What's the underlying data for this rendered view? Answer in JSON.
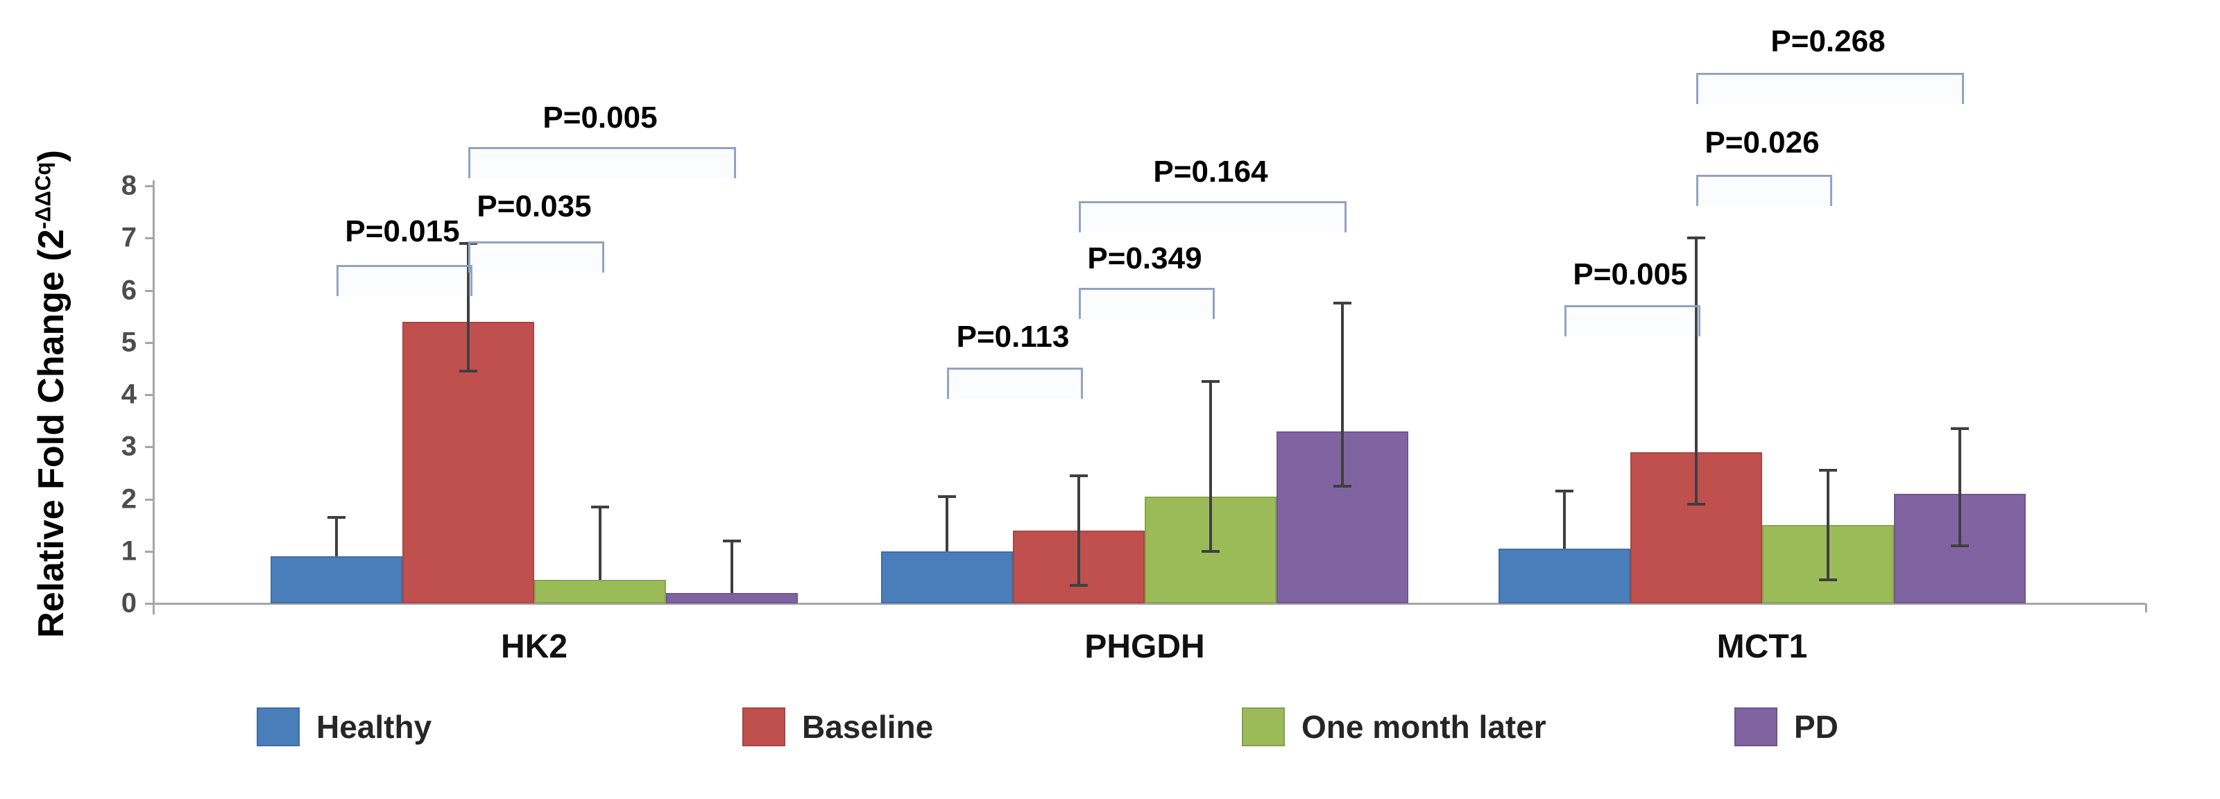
{
  "chart_data": {
    "type": "bar",
    "title": "",
    "ylabel_main": "Relative Fold Change (2",
    "ylabel_sup": "-ΔΔCq",
    "ylabel_close": ")",
    "ylim": [
      0,
      8
    ],
    "y_ticks": [
      0,
      1,
      2,
      3,
      4,
      5,
      6,
      7,
      8
    ],
    "grid": false,
    "legend_position": "bottom",
    "categories": [
      "HK2",
      "PHGDH",
      "MCT1"
    ],
    "series": [
      {
        "name": "Healthy",
        "color": "#4A7EBB",
        "values": [
          0.9,
          1.0,
          1.05
        ],
        "err_hi": [
          1.65,
          2.05,
          2.15
        ],
        "err_lo": [
          null,
          null,
          null
        ]
      },
      {
        "name": "Baseline",
        "color": "#C0504D",
        "values": [
          5.4,
          1.4,
          2.9
        ],
        "err_hi": [
          6.9,
          2.45,
          7.0
        ],
        "err_lo": [
          4.45,
          0.35,
          1.9
        ]
      },
      {
        "name": "One month later",
        "color": "#9BBB59",
        "values": [
          0.45,
          2.05,
          1.5
        ],
        "err_hi": [
          1.85,
          4.25,
          2.55
        ],
        "err_lo": [
          null,
          1.0,
          0.45
        ]
      },
      {
        "name": "PD",
        "color": "#8064A2",
        "values": [
          0.2,
          3.3,
          2.1
        ],
        "err_hi": [
          1.2,
          5.75,
          3.35
        ],
        "err_lo": [
          null,
          2.25,
          1.1
        ]
      }
    ],
    "significance_brackets": [
      {
        "group": "HK2",
        "label": "P=0.015",
        "from": "Healthy",
        "to": "Baseline"
      },
      {
        "group": "HK2",
        "label": "P=0.035",
        "from": "Baseline",
        "to": "One month later"
      },
      {
        "group": "HK2",
        "label": "P=0.005",
        "from": "Baseline",
        "to": "PD"
      },
      {
        "group": "PHGDH",
        "label": "P=0.113",
        "from": "Healthy",
        "to": "Baseline"
      },
      {
        "group": "PHGDH",
        "label": "P=0.349",
        "from": "Baseline",
        "to": "One month later"
      },
      {
        "group": "PHGDH",
        "label": "P=0.164",
        "from": "Baseline",
        "to": "PD"
      },
      {
        "group": "MCT1",
        "label": "P=0.005",
        "from": "Healthy",
        "to": "Baseline"
      },
      {
        "group": "MCT1",
        "label": "P=0.026",
        "from": "Baseline",
        "to": "One month later"
      },
      {
        "group": "MCT1",
        "label": "P=0.268",
        "from": "Baseline",
        "to": "PD"
      }
    ],
    "legend": [
      "Healthy",
      "Baseline",
      "One month later",
      "PD"
    ]
  }
}
